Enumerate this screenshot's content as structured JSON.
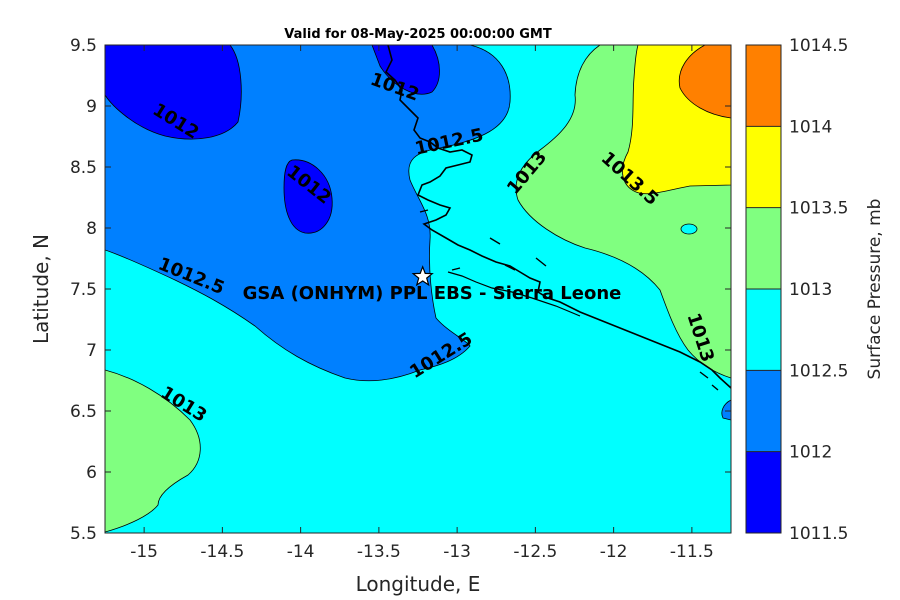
{
  "title": "Valid for 08-May-2025 00:00:00 GMT",
  "station_label": "GSA (ONHYM) PPL EBS  - Sierra Leone",
  "station": {
    "lon": -13.22,
    "lat": 7.6,
    "marker": "star-icon"
  },
  "x_axis": {
    "label": "Longitude, E",
    "range": [
      -15.25,
      -11.25
    ],
    "ticks": [
      -15,
      -14.5,
      -14,
      -13.5,
      -13,
      -12.5,
      -12,
      -11.5
    ],
    "tick_labels": [
      "-15",
      "-14.5",
      "-14",
      "-13.5",
      "-13",
      "-12.5",
      "-12",
      "-11.5"
    ]
  },
  "y_axis": {
    "label": "Latitude, N",
    "range": [
      5.5,
      9.5
    ],
    "ticks": [
      5.5,
      6,
      6.5,
      7,
      7.5,
      8,
      8.5,
      9,
      9.5
    ],
    "tick_labels": [
      "5.5",
      "6",
      "6.5",
      "7",
      "7.5",
      "8",
      "8.5",
      "9",
      "9.5"
    ]
  },
  "colorbar": {
    "label": "Surface Pressure, mb",
    "levels": [
      1011.5,
      1012,
      1012.5,
      1013,
      1013.5,
      1014,
      1014.5
    ],
    "tick_labels": [
      "1011.5",
      "1012",
      "1012.5",
      "1013",
      "1013.5",
      "1014",
      "1014.5"
    ],
    "colors": [
      "#0000ff",
      "#0080ff",
      "#00ffff",
      "#80ff80",
      "#ffff00",
      "#ff8000",
      "#ff0000"
    ]
  },
  "contour_labels": [
    {
      "text": "1012",
      "lon": -13.4,
      "lat": 9.15,
      "angle": 20
    },
    {
      "text": "1012",
      "lon": -14.8,
      "lat": 8.87,
      "angle": 32
    },
    {
      "text": "1012",
      "lon": -13.95,
      "lat": 8.35,
      "angle": 38
    },
    {
      "text": "1012.5",
      "lon": -13.05,
      "lat": 8.7,
      "angle": -12
    },
    {
      "text": "1012.5",
      "lon": -14.7,
      "lat": 7.6,
      "angle": 22
    },
    {
      "text": "1012.5",
      "lon": -13.1,
      "lat": 6.95,
      "angle": -32
    },
    {
      "text": "1013",
      "lon": -12.55,
      "lat": 8.45,
      "angle": -50
    },
    {
      "text": "1013.5",
      "lon": -11.9,
      "lat": 8.4,
      "angle": 42
    },
    {
      "text": "1013",
      "lon": -11.45,
      "lat": 7.1,
      "angle": 72
    },
    {
      "text": "1013",
      "lon": -14.75,
      "lat": 6.55,
      "angle": 32
    }
  ]
}
